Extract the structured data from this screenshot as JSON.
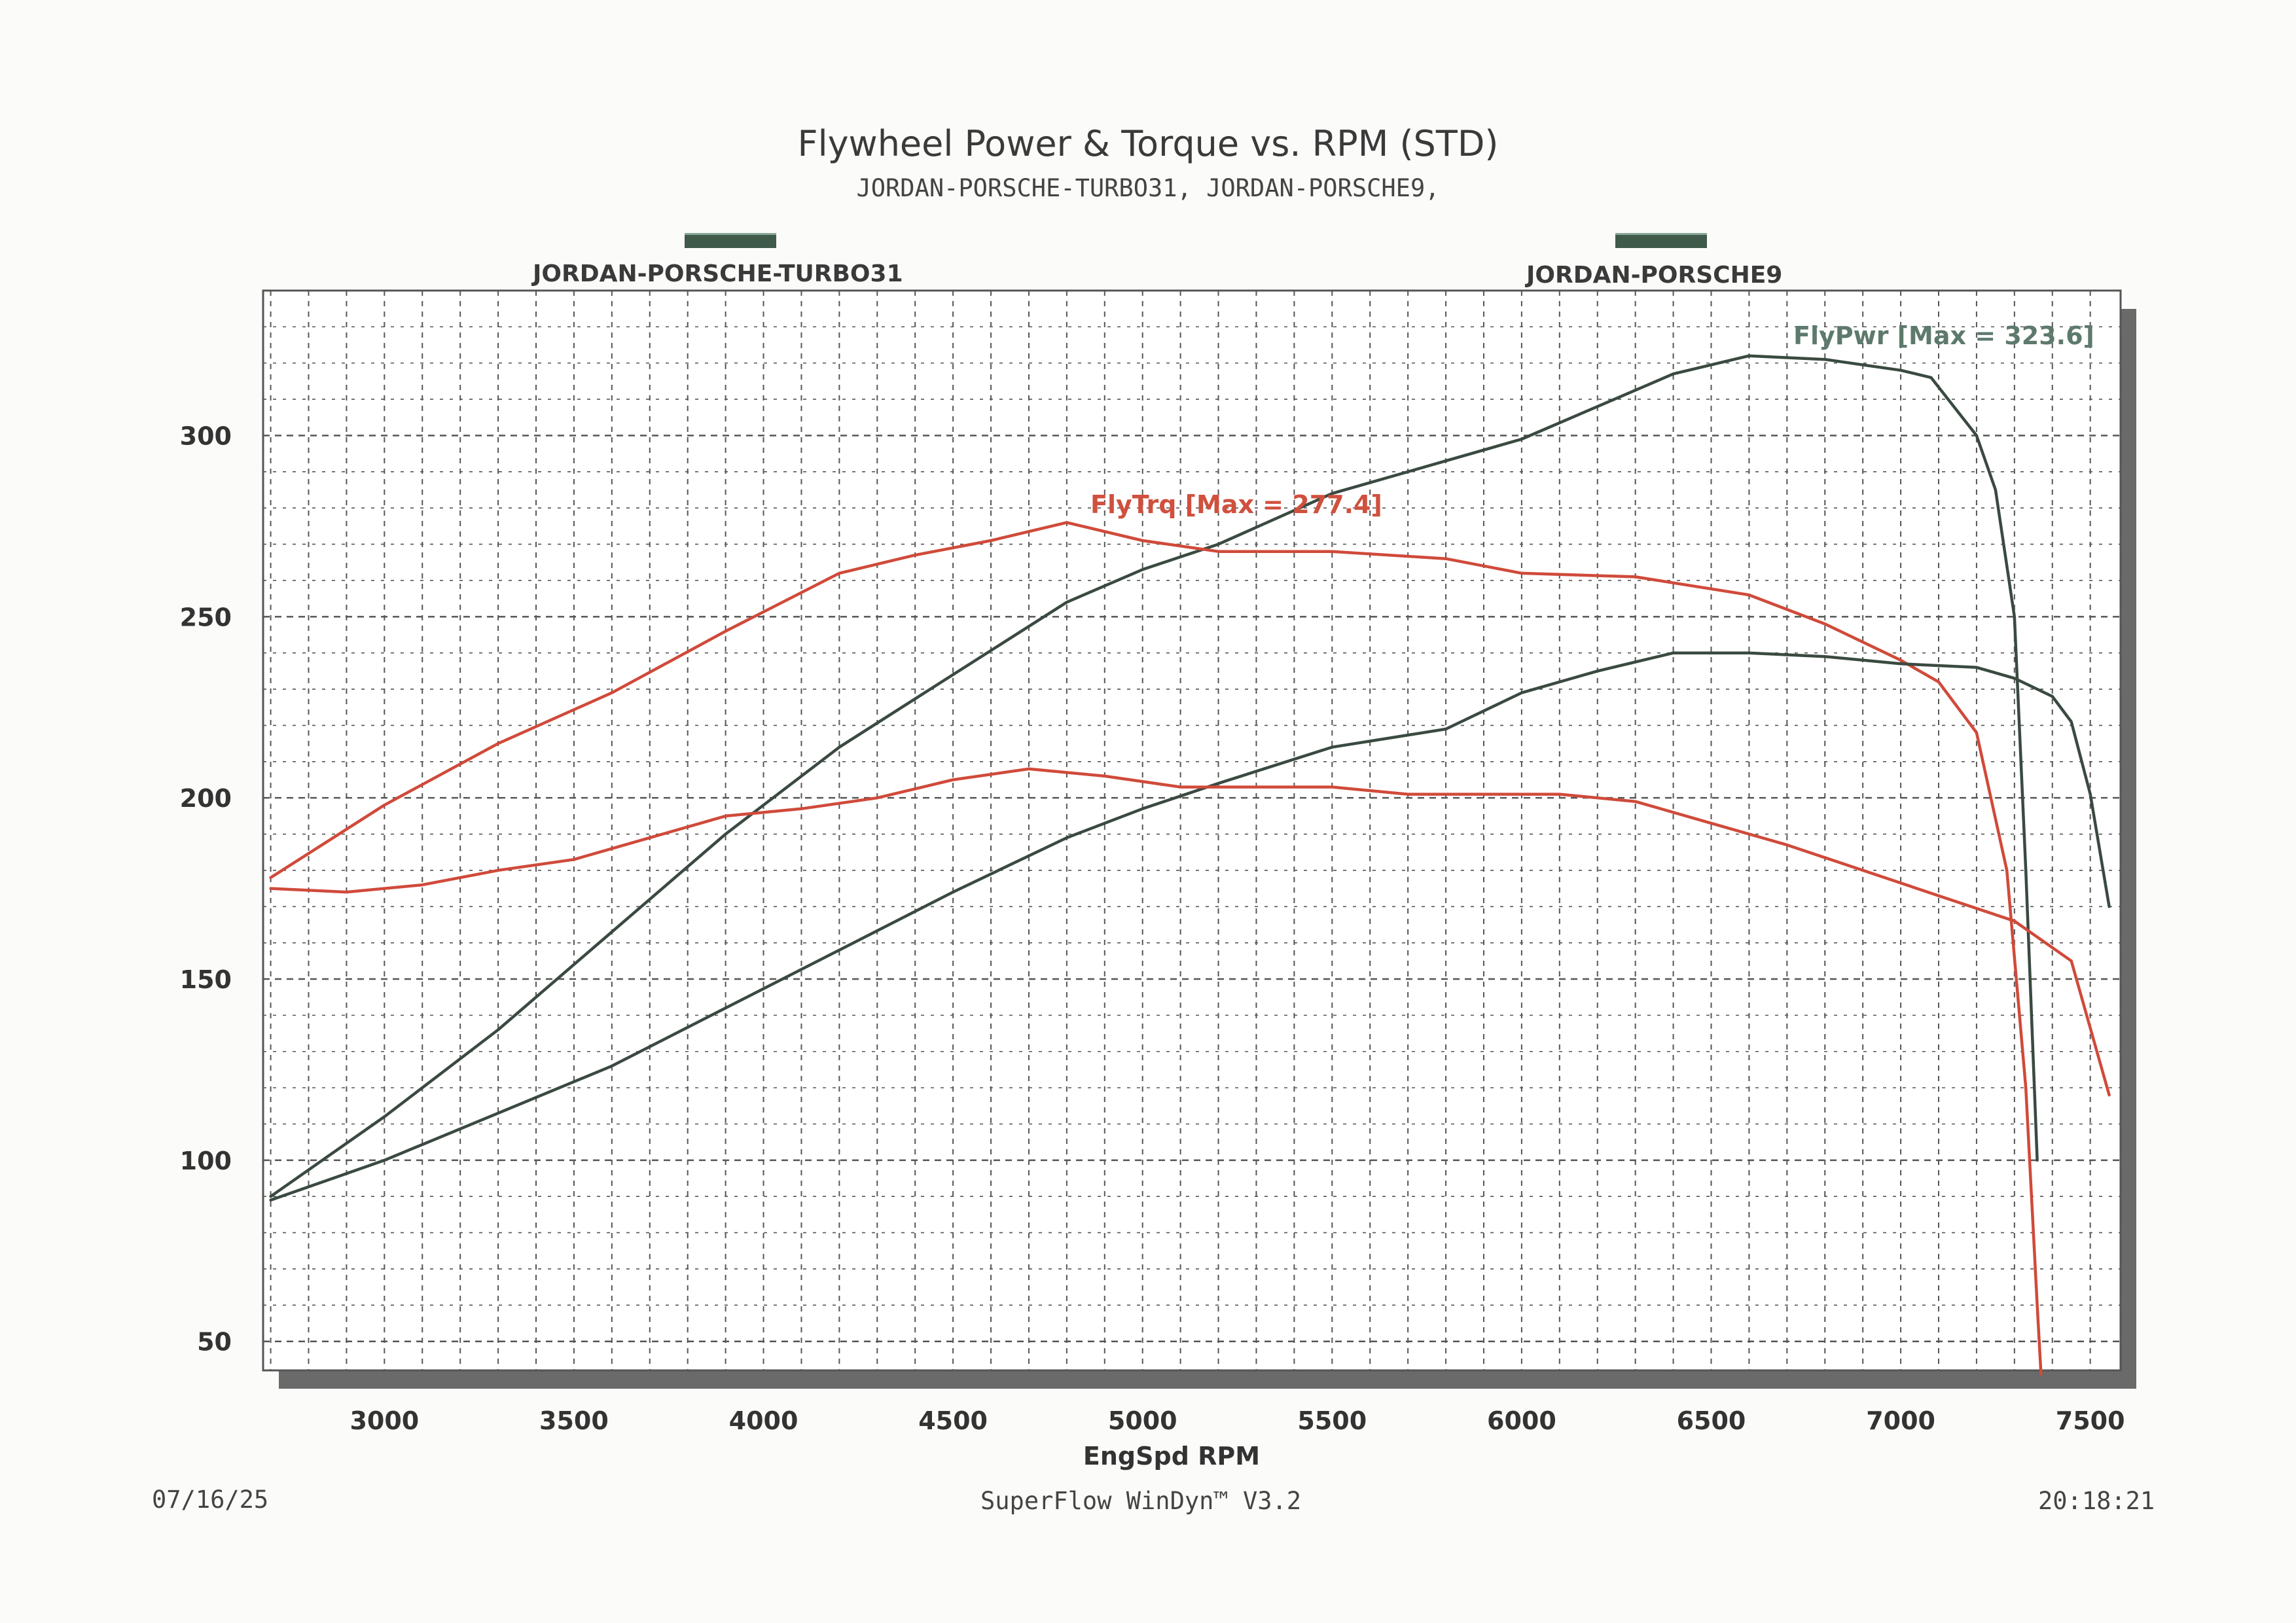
{
  "header": {
    "title": "Flywheel Power & Torque vs. RPM (STD)",
    "subtitle": "JORDAN-PORSCHE-TURBO31, JORDAN-PORSCHE9,"
  },
  "legend": [
    {
      "label": "JORDAN-PORSCHE-TURBO31",
      "color": "#3f5a4a"
    },
    {
      "label": "JORDAN-PORSCHE9",
      "color": "#3f5a4a"
    }
  ],
  "annotations": {
    "power": "FlyPwr [Max = 323.6]",
    "torque": "FlyTrq [Max = 277.4]"
  },
  "footer": {
    "date": "07/16/25",
    "software": "SuperFlow WinDyn™ V3.2",
    "time": "20:18:21"
  },
  "colors": {
    "power": "#3a4a40",
    "torque": "#d04a3a",
    "grid": "#555555"
  },
  "chart_data": {
    "type": "line",
    "xlabel": "EngSpd RPM",
    "ylabel": "",
    "xlim": [
      2680,
      7580
    ],
    "ylim": [
      42,
      340
    ],
    "xticks": [
      3000,
      3500,
      4000,
      4500,
      5000,
      5500,
      6000,
      6500,
      7000,
      7500
    ],
    "yticks": [
      50,
      100,
      150,
      200,
      250,
      300
    ],
    "grid": true,
    "series": [
      {
        "name": "JORDAN-PORSCHE-TURBO31",
        "kind": "power",
        "x": [
          2700,
          3000,
          3300,
          3600,
          3900,
          4200,
          4500,
          4800,
          5000,
          5200,
          5500,
          5800,
          6000,
          6200,
          6400,
          6600,
          6800,
          7000,
          7080,
          7200,
          7250,
          7300,
          7330,
          7360
        ],
        "y": [
          90,
          112,
          136,
          163,
          190,
          214,
          234,
          254,
          263,
          270,
          284,
          293,
          299,
          308,
          317,
          322,
          321,
          318,
          316,
          300,
          285,
          250,
          180,
          100
        ]
      },
      {
        "name": "JORDAN-PORSCHE-TURBO31",
        "kind": "torque",
        "x": [
          2700,
          3000,
          3300,
          3600,
          3900,
          4200,
          4400,
          4600,
          4800,
          5000,
          5200,
          5500,
          5800,
          6000,
          6300,
          6600,
          6800,
          7000,
          7100,
          7200,
          7280,
          7330,
          7360,
          7370
        ],
        "y": [
          178,
          198,
          215,
          229,
          246,
          262,
          267,
          271,
          276,
          271,
          268,
          268,
          266,
          262,
          261,
          256,
          248,
          238,
          232,
          218,
          180,
          120,
          60,
          41
        ]
      },
      {
        "name": "JORDAN-PORSCHE9",
        "kind": "power",
        "x": [
          2700,
          3000,
          3300,
          3600,
          3900,
          4200,
          4500,
          4800,
          5000,
          5200,
          5500,
          5800,
          6000,
          6200,
          6400,
          6600,
          6800,
          7000,
          7200,
          7300,
          7400,
          7450,
          7500,
          7550
        ],
        "y": [
          89,
          100,
          113,
          126,
          142,
          158,
          174,
          189,
          197,
          204,
          214,
          219,
          229,
          235,
          240,
          240,
          239,
          237,
          236,
          233,
          228,
          221,
          201,
          170
        ]
      },
      {
        "name": "JORDAN-PORSCHE9",
        "kind": "torque",
        "x": [
          2700,
          2900,
          3100,
          3300,
          3500,
          3700,
          3900,
          4100,
          4300,
          4500,
          4700,
          4900,
          5100,
          5300,
          5500,
          5700,
          5900,
          6100,
          6300,
          6500,
          6700,
          6900,
          7100,
          7300,
          7450,
          7550
        ],
        "y": [
          175,
          174,
          176,
          180,
          183,
          189,
          195,
          197,
          200,
          205,
          208,
          206,
          203,
          203,
          203,
          201,
          201,
          201,
          199,
          193,
          187,
          180,
          173,
          166,
          155,
          118
        ]
      }
    ]
  }
}
